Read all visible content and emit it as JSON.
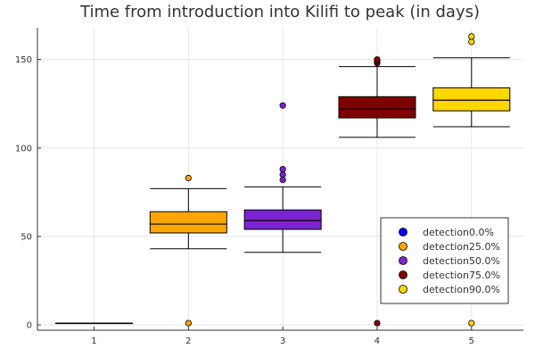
{
  "chart_data": {
    "type": "box",
    "title": "Time from introduction into Kilifi to peak (in days)",
    "xlabel": "",
    "ylabel": "",
    "categories": [
      "1",
      "2",
      "3",
      "4",
      "5"
    ],
    "xlim": [
      0.4,
      5.55
    ],
    "ylim": [
      -3,
      168
    ],
    "yticks": [
      0,
      50,
      100,
      150
    ],
    "grid": true,
    "legend_position": "bottom-right",
    "series": [
      {
        "name": "detection0.0%",
        "color": "#0000ff",
        "x": 1,
        "q1": 1,
        "median": 1,
        "q3": 1,
        "whisker_low": 1,
        "whisker_high": 1,
        "outliers": []
      },
      {
        "name": "detection25.0%",
        "color": "#ffa500",
        "x": 2,
        "q1": 52,
        "median": 57,
        "q3": 64,
        "whisker_low": 43,
        "whisker_high": 77,
        "outliers": [
          83,
          1
        ]
      },
      {
        "name": "detection50.0%",
        "color": "#7b24d1",
        "x": 3,
        "q1": 54,
        "median": 59,
        "q3": 65,
        "whisker_low": 41,
        "whisker_high": 78,
        "outliers": [
          82,
          85,
          88,
          124
        ]
      },
      {
        "name": "detection75.0%",
        "color": "#800000",
        "x": 4,
        "q1": 117,
        "median": 122,
        "q3": 129,
        "whisker_low": 106,
        "whisker_high": 146,
        "outliers": [
          148,
          149,
          150,
          1
        ]
      },
      {
        "name": "detection90.0%",
        "color": "#ffd700",
        "x": 5,
        "q1": 121,
        "median": 127,
        "q3": 134,
        "whisker_low": 112,
        "whisker_high": 151,
        "outliers": [
          160,
          163,
          1
        ]
      }
    ]
  }
}
